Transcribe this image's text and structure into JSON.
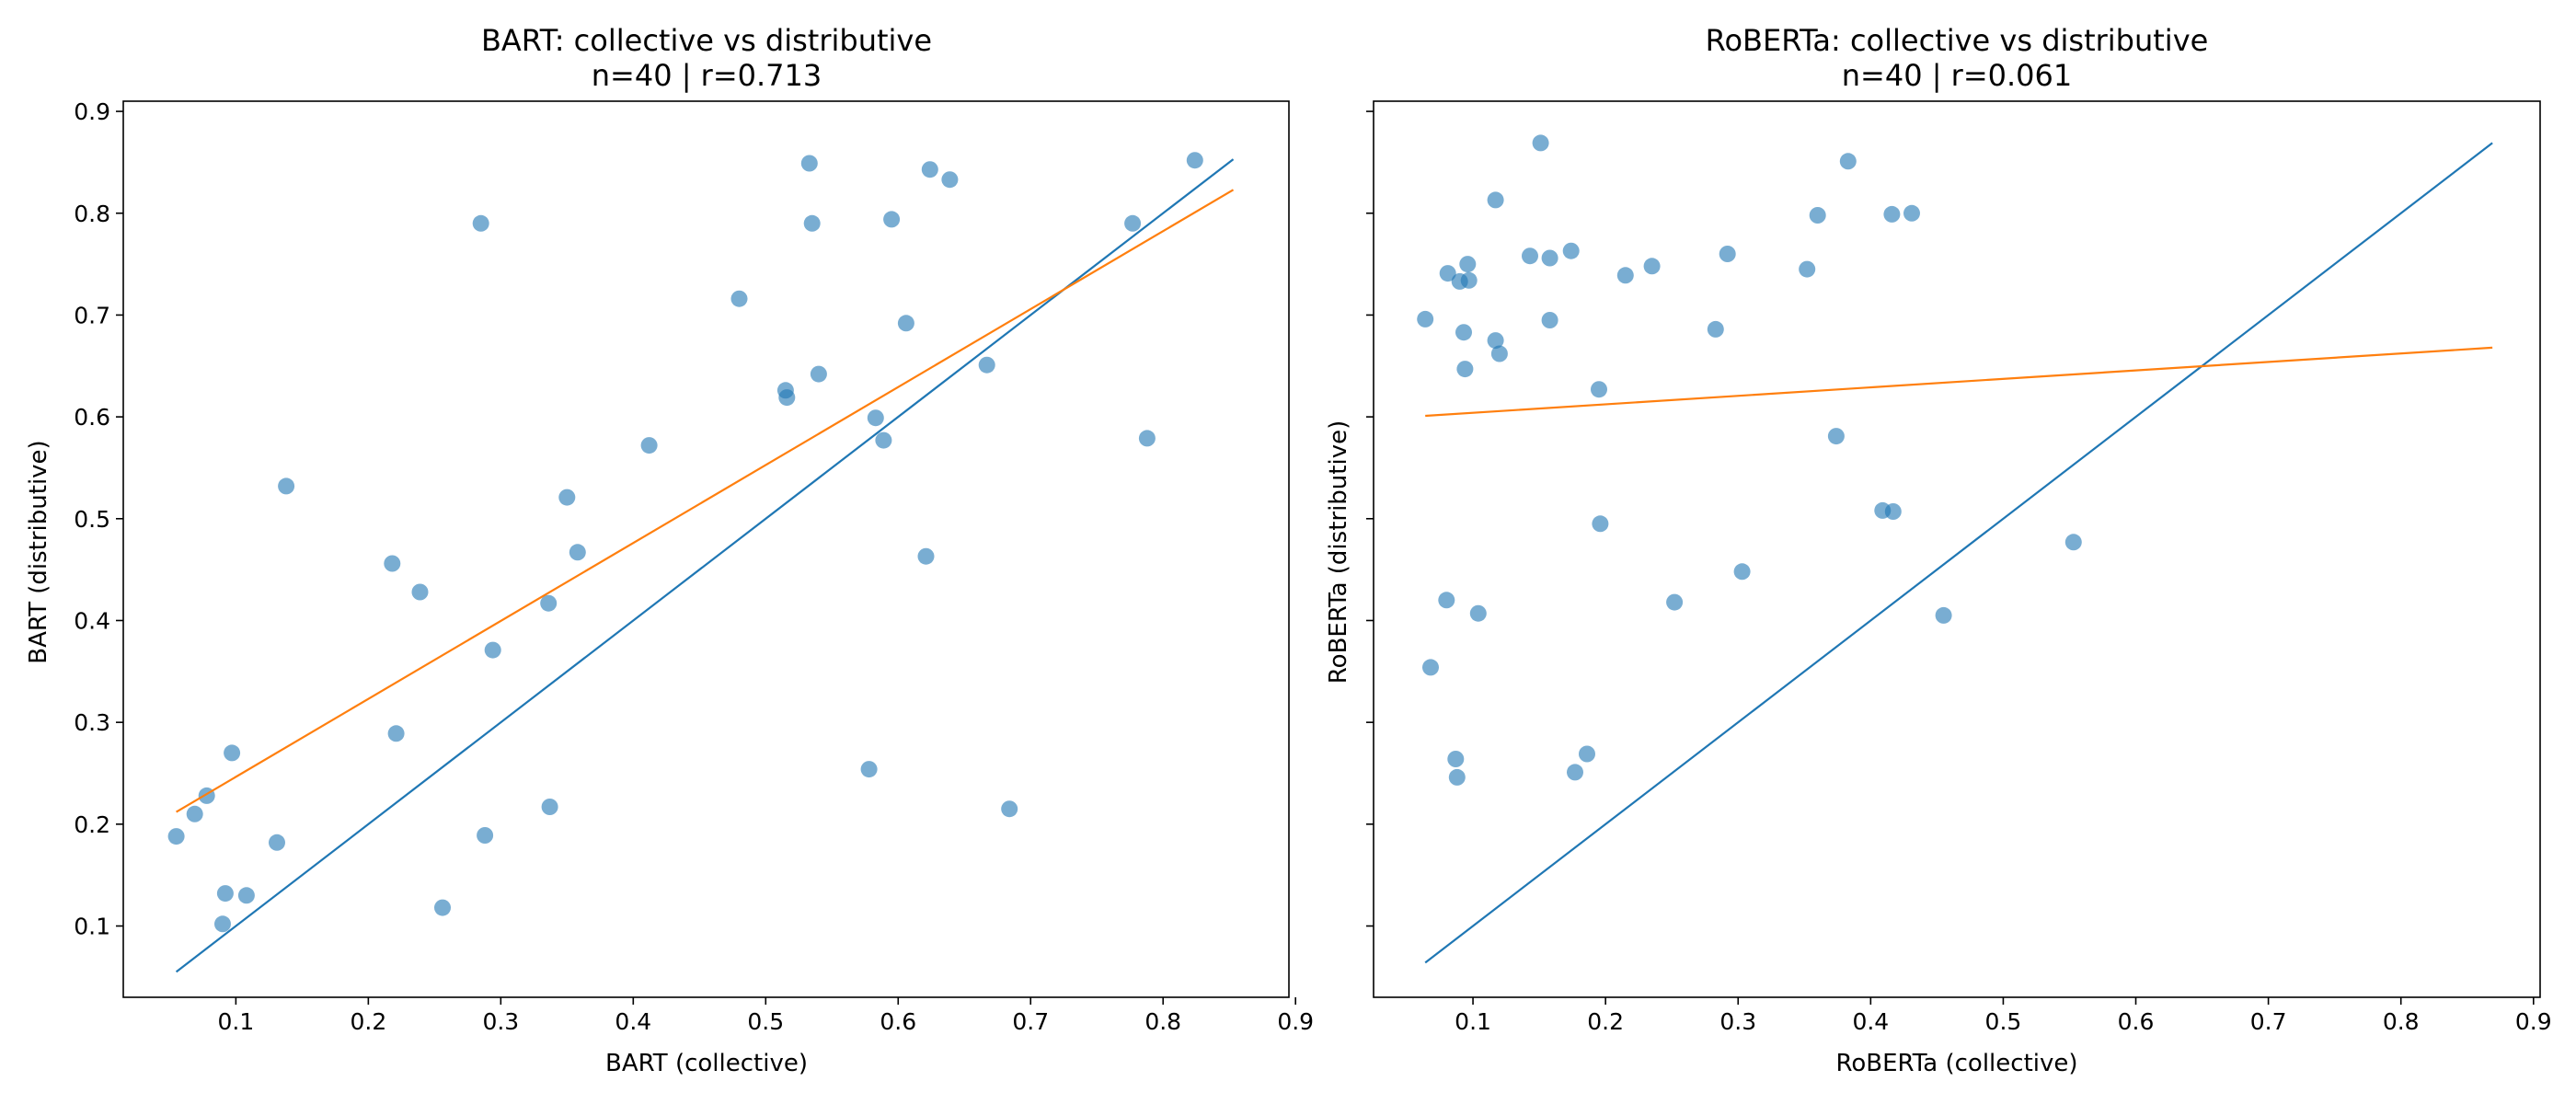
{
  "chart_data": [
    {
      "type": "scatter",
      "title": "BART: collective vs distributive",
      "subtitle": "n=40 | r=0.713",
      "xlabel": "BART (collective)",
      "ylabel": "BART (distributive)",
      "xlim": [
        0.015,
        0.895
      ],
      "ylim": [
        0.03,
        0.91
      ],
      "xticks": [
        0.1,
        0.2,
        0.3,
        0.4,
        0.5,
        0.6,
        0.7,
        0.8,
        0.9
      ],
      "yticks": [
        0.1,
        0.2,
        0.3,
        0.4,
        0.5,
        0.6,
        0.7,
        0.8,
        0.9
      ],
      "xtick_labels": [
        "0.1",
        "0.2",
        "0.3",
        "0.4",
        "0.5",
        "0.6",
        "0.7",
        "0.8",
        "0.9"
      ],
      "ytick_labels": [
        "0.1",
        "0.2",
        "0.3",
        "0.4",
        "0.5",
        "0.6",
        "0.7",
        "0.8",
        "0.9"
      ],
      "show_ytick_labels": true,
      "grid": false,
      "points": [
        [
          0.055,
          0.188
        ],
        [
          0.069,
          0.21
        ],
        [
          0.078,
          0.228
        ],
        [
          0.09,
          0.102
        ],
        [
          0.092,
          0.132
        ],
        [
          0.097,
          0.27
        ],
        [
          0.108,
          0.13
        ],
        [
          0.131,
          0.182
        ],
        [
          0.138,
          0.532
        ],
        [
          0.218,
          0.456
        ],
        [
          0.221,
          0.289
        ],
        [
          0.239,
          0.428
        ],
        [
          0.256,
          0.118
        ],
        [
          0.285,
          0.79
        ],
        [
          0.288,
          0.189
        ],
        [
          0.294,
          0.371
        ],
        [
          0.336,
          0.417
        ],
        [
          0.337,
          0.217
        ],
        [
          0.35,
          0.521
        ],
        [
          0.358,
          0.467
        ],
        [
          0.412,
          0.572
        ],
        [
          0.48,
          0.716
        ],
        [
          0.515,
          0.626
        ],
        [
          0.516,
          0.619
        ],
        [
          0.533,
          0.849
        ],
        [
          0.535,
          0.79
        ],
        [
          0.54,
          0.642
        ],
        [
          0.578,
          0.254
        ],
        [
          0.583,
          0.599
        ],
        [
          0.589,
          0.577
        ],
        [
          0.595,
          0.794
        ],
        [
          0.606,
          0.692
        ],
        [
          0.621,
          0.463
        ],
        [
          0.624,
          0.843
        ],
        [
          0.639,
          0.833
        ],
        [
          0.667,
          0.651
        ],
        [
          0.684,
          0.215
        ],
        [
          0.777,
          0.79
        ],
        [
          0.788,
          0.579
        ],
        [
          0.824,
          0.852
        ]
      ],
      "identity_line": {
        "x": [
          0.055,
          0.853
        ],
        "y": [
          0.055,
          0.853
        ],
        "color": "#1f77b4"
      },
      "fit_line": {
        "x": [
          0.055,
          0.853
        ],
        "y": [
          0.212,
          0.823
        ],
        "color": "#ff7f0e"
      },
      "point_color": "#1f77b4"
    },
    {
      "type": "scatter",
      "title": "RoBERTa: collective vs distributive",
      "subtitle": "n=40 | r=0.061",
      "xlabel": "RoBERTa (collective)",
      "ylabel": "RoBERTa (distributive)",
      "xlim": [
        0.025,
        0.905
      ],
      "ylim": [
        0.03,
        0.91
      ],
      "xticks": [
        0.1,
        0.2,
        0.3,
        0.4,
        0.5,
        0.6,
        0.7,
        0.8,
        0.9
      ],
      "yticks": [
        0.1,
        0.2,
        0.3,
        0.4,
        0.5,
        0.6,
        0.7,
        0.8,
        0.9
      ],
      "xtick_labels": [
        "0.1",
        "0.2",
        "0.3",
        "0.4",
        "0.5",
        "0.6",
        "0.7",
        "0.8",
        "0.9"
      ],
      "ytick_labels": [],
      "show_ytick_labels": false,
      "grid": false,
      "points": [
        [
          0.064,
          0.696
        ],
        [
          0.068,
          0.354
        ],
        [
          0.08,
          0.42
        ],
        [
          0.081,
          0.741
        ],
        [
          0.087,
          0.264
        ],
        [
          0.088,
          0.246
        ],
        [
          0.09,
          0.733
        ],
        [
          0.093,
          0.683
        ],
        [
          0.094,
          0.647
        ],
        [
          0.096,
          0.75
        ],
        [
          0.097,
          0.734
        ],
        [
          0.104,
          0.407
        ],
        [
          0.117,
          0.675
        ],
        [
          0.117,
          0.813
        ],
        [
          0.12,
          0.662
        ],
        [
          0.143,
          0.758
        ],
        [
          0.151,
          0.869
        ],
        [
          0.158,
          0.756
        ],
        [
          0.158,
          0.695
        ],
        [
          0.174,
          0.763
        ],
        [
          0.177,
          0.251
        ],
        [
          0.186,
          0.269
        ],
        [
          0.195,
          0.627
        ],
        [
          0.196,
          0.495
        ],
        [
          0.215,
          0.739
        ],
        [
          0.235,
          0.748
        ],
        [
          0.252,
          0.418
        ],
        [
          0.283,
          0.686
        ],
        [
          0.292,
          0.76
        ],
        [
          0.303,
          0.448
        ],
        [
          0.352,
          0.745
        ],
        [
          0.36,
          0.798
        ],
        [
          0.374,
          0.581
        ],
        [
          0.383,
          0.851
        ],
        [
          0.409,
          0.508
        ],
        [
          0.416,
          0.799
        ],
        [
          0.417,
          0.507
        ],
        [
          0.431,
          0.8
        ],
        [
          0.455,
          0.405
        ],
        [
          0.553,
          0.477
        ]
      ],
      "identity_line": {
        "x": [
          0.064,
          0.869
        ],
        "y": [
          0.064,
          0.869
        ],
        "color": "#1f77b4"
      },
      "fit_line": {
        "x": [
          0.064,
          0.869
        ],
        "y": [
          0.601,
          0.668
        ],
        "color": "#ff7f0e"
      },
      "point_color": "#1f77b4"
    }
  ]
}
